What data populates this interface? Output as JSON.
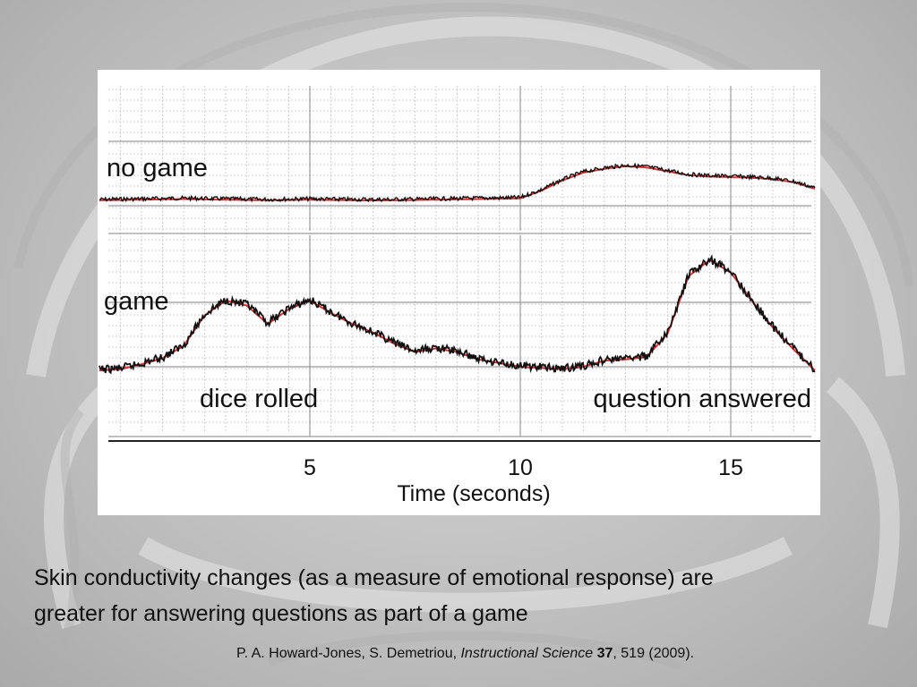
{
  "caption": {
    "line1": "Skin conductivity changes (as a measure of emotional response) are",
    "line2": "greater for answering questions as part of a game"
  },
  "citation": {
    "authors": "P. A. Howard-Jones, S. Demetriou, ",
    "journal": "Instructional Science",
    "volume": "37",
    "rest": ", 519 (2009)."
  },
  "colors": {
    "trace": "#111111",
    "trace_overlay": "#e03030",
    "grid_minor": "#cfcfcf",
    "grid_major": "#9a9a9a",
    "axis": "#222222"
  },
  "chart_data": {
    "type": "line",
    "xlabel": "Time (seconds)",
    "xlim": [
      0,
      17
    ],
    "xticks": [
      5,
      10,
      15
    ],
    "grid": true,
    "annotations": [
      "no game",
      "game",
      "dice rolled",
      "question answered"
    ],
    "series": [
      {
        "name": "no game",
        "x": [
          0,
          1,
          2,
          3,
          4,
          5,
          6,
          7,
          8,
          9,
          10,
          10.5,
          11,
          11.5,
          12,
          12.5,
          13,
          13.5,
          14,
          14.5,
          15,
          15.5,
          16,
          16.5,
          17
        ],
        "values": [
          0.07,
          0.08,
          0.09,
          0.08,
          0.07,
          0.08,
          0.07,
          0.07,
          0.08,
          0.09,
          0.1,
          0.22,
          0.38,
          0.5,
          0.56,
          0.6,
          0.58,
          0.52,
          0.46,
          0.44,
          0.43,
          0.42,
          0.4,
          0.35,
          0.25
        ]
      },
      {
        "name": "game",
        "x": [
          0,
          0.5,
          1,
          1.5,
          2,
          2.5,
          3,
          3.5,
          4,
          4.5,
          5,
          5.5,
          6,
          6.5,
          7,
          7.5,
          8,
          8.5,
          9,
          9.5,
          10,
          10.5,
          11,
          11.5,
          12,
          12.5,
          13,
          13.5,
          14,
          14.5,
          15,
          15.5,
          16,
          16.5,
          17
        ],
        "values": [
          0.05,
          0.06,
          0.1,
          0.15,
          0.25,
          0.5,
          0.62,
          0.58,
          0.43,
          0.55,
          0.62,
          0.52,
          0.43,
          0.36,
          0.27,
          0.2,
          0.23,
          0.2,
          0.14,
          0.11,
          0.08,
          0.07,
          0.06,
          0.08,
          0.13,
          0.14,
          0.16,
          0.35,
          0.82,
          0.95,
          0.85,
          0.62,
          0.4,
          0.22,
          0.05
        ]
      }
    ]
  }
}
